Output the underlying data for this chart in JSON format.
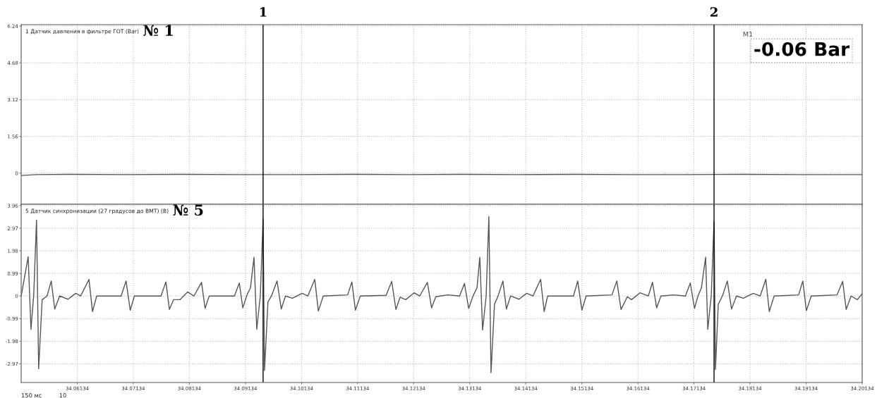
{
  "chart_data": [
    {
      "type": "line",
      "title": "1 Датчик давления в фильтре ГОТ (Bar)",
      "annotations": [
        "№ 1",
        "M1",
        "-0.06 Bar",
        "1",
        "2"
      ],
      "xlim": [
        34.05134,
        34.20134
      ],
      "xticks": [
        34.06134,
        34.07134,
        34.08134,
        34.09134,
        34.10134,
        34.11134,
        34.12134,
        34.13134,
        34.14134,
        34.15134,
        34.16134,
        34.17134,
        34.18134,
        34.19134,
        34.20134
      ],
      "ylim": [
        -1.32,
        6.3
      ],
      "yticks": [
        0,
        1.56,
        3.12,
        4.68,
        6.24
      ],
      "tick_labels": "y",
      "grid": true,
      "marker": "none",
      "line_style": "solid",
      "ref_lines": [
        {
          "axis": "x",
          "value": 34.09449,
          "color": "#000000"
        },
        {
          "axis": "x",
          "value": 34.17492,
          "color": "#000000"
        }
      ],
      "series": [
        {
          "color": "#555555",
          "x": [
            34.05134,
            34.054,
            34.06,
            34.07,
            34.08,
            34.09,
            34.1,
            34.11,
            34.12,
            34.13,
            34.14,
            34.15,
            34.16,
            34.17,
            34.18,
            34.19,
            34.20134
          ],
          "values": [
            -0.1,
            -0.06,
            -0.05,
            -0.06,
            -0.05,
            -0.06,
            -0.06,
            -0.05,
            -0.06,
            -0.05,
            -0.06,
            -0.05,
            -0.06,
            -0.06,
            -0.05,
            -0.06,
            -0.06
          ]
        }
      ]
    },
    {
      "type": "line",
      "title": "5 Датчик синхронизации (27 градусов до ВМТ) (B)",
      "annotations": [
        "№ 5",
        "150 мс",
        "10"
      ],
      "xlim": [
        34.05134,
        34.20134
      ],
      "xticks": [
        34.06134,
        34.07134,
        34.08134,
        34.09134,
        34.10134,
        34.11134,
        34.12134,
        34.13134,
        34.14134,
        34.15134,
        34.16134,
        34.17134,
        34.18134,
        34.19134,
        34.20134
      ],
      "ylim": [
        -3.79,
        4.02
      ],
      "yticks": [
        -2.97,
        -1.98,
        -0.99,
        0,
        0.99,
        1.98,
        2.97,
        3.96
      ],
      "grid": true,
      "marker": "none",
      "line_style": "solid",
      "ref_lines": [
        {
          "axis": "x",
          "value": 34.09449,
          "color": "#000000"
        },
        {
          "axis": "x",
          "value": 34.17492,
          "color": "#000000"
        }
      ],
      "series": [
        {
          "color": "#555555",
          "x": [
            34.05134,
            34.05259,
            34.05309,
            34.05358,
            34.05408,
            34.05446,
            34.05508,
            34.05595,
            34.0567,
            34.05733,
            34.0582,
            34.0597,
            34.06107,
            34.06194,
            34.06344,
            34.06406,
            34.06481,
            34.06917,
            34.07005,
            34.07079,
            34.07154,
            34.07628,
            34.07715,
            34.07778,
            34.07852,
            34.07965,
            34.08102,
            34.08214,
            34.08351,
            34.08414,
            34.08488,
            34.08937,
            34.09025,
            34.09087,
            34.09162,
            34.09224,
            34.09287,
            34.09336,
            34.09399,
            34.09449,
            34.09474,
            34.09536,
            34.09598,
            34.09698,
            34.09773,
            34.09848,
            34.09972,
            34.10147,
            34.10247,
            34.10371,
            34.10434,
            34.10521,
            34.10958,
            34.11032,
            34.11095,
            34.11182,
            34.11643,
            34.11743,
            34.11818,
            34.11893,
            34.11993,
            34.12142,
            34.12242,
            34.12379,
            34.12454,
            34.12529,
            34.12741,
            34.12953,
            34.1304,
            34.13115,
            34.13202,
            34.13264,
            34.13314,
            34.13364,
            34.13427,
            34.13476,
            34.13514,
            34.13576,
            34.13639,
            34.13726,
            34.13788,
            34.13863,
            34.14013,
            34.1415,
            34.14262,
            34.14399,
            34.14462,
            34.14524,
            34.14985,
            34.1506,
            34.15135,
            34.1521,
            34.15671,
            34.15758,
            34.15833,
            34.15945,
            34.1602,
            34.1617,
            34.1632,
            34.16394,
            34.16469,
            34.16544,
            34.16769,
            34.16981,
            34.17068,
            34.17143,
            34.17205,
            34.17267,
            34.17342,
            34.1738,
            34.17442,
            34.17492,
            34.17517,
            34.17567,
            34.17641,
            34.17729,
            34.17804,
            34.17891,
            34.18015,
            34.1819,
            34.18315,
            34.18415,
            34.18477,
            34.18564,
            34.19001,
            34.19075,
            34.19138,
            34.19225,
            34.19686,
            34.19786,
            34.19849,
            34.19936,
            34.20048,
            34.20134
          ],
          "values": [
            0,
            1.72,
            -1.46,
            0.05,
            3.33,
            -3.19,
            -0.16,
            0,
            0.66,
            -0.57,
            0,
            -0.14,
            0.12,
            0,
            0.73,
            -0.68,
            0,
            0,
            0.66,
            -0.62,
            0,
            0,
            0.62,
            -0.59,
            -0.16,
            -0.16,
            0.18,
            0,
            0.6,
            -0.54,
            0,
            0,
            0.57,
            -0.52,
            0.05,
            0.36,
            1.7,
            -1.46,
            0,
            3.38,
            -3.26,
            -0.26,
            0,
            0.66,
            -0.57,
            0,
            -0.1,
            0.12,
            0,
            0.73,
            -0.66,
            0,
            0.05,
            0.62,
            -0.62,
            0,
            0.03,
            0.64,
            -0.59,
            -0.05,
            -0.16,
            0.14,
            0,
            0.6,
            -0.52,
            -0.03,
            0.05,
            0,
            0.55,
            -0.54,
            0.05,
            0.36,
            1.7,
            -1.49,
            0,
            3.48,
            -3.36,
            -0.36,
            0,
            0.66,
            -0.57,
            0,
            -0.14,
            0.12,
            0,
            0.73,
            -0.68,
            0,
            0,
            0.66,
            -0.62,
            0,
            0.05,
            0.66,
            -0.59,
            -0.03,
            -0.16,
            0.14,
            0,
            0.6,
            -0.52,
            0,
            0.05,
            0,
            0.57,
            -0.54,
            0,
            0.36,
            1.7,
            -1.46,
            0,
            3.28,
            -3.22,
            -0.36,
            0,
            0.66,
            -0.57,
            0,
            -0.1,
            0.12,
            0,
            0.73,
            -0.68,
            0,
            0.05,
            0.66,
            -0.64,
            0,
            0.05,
            0.64,
            -0.59,
            0,
            -0.16,
            0.1
          ]
        }
      ]
    }
  ]
}
